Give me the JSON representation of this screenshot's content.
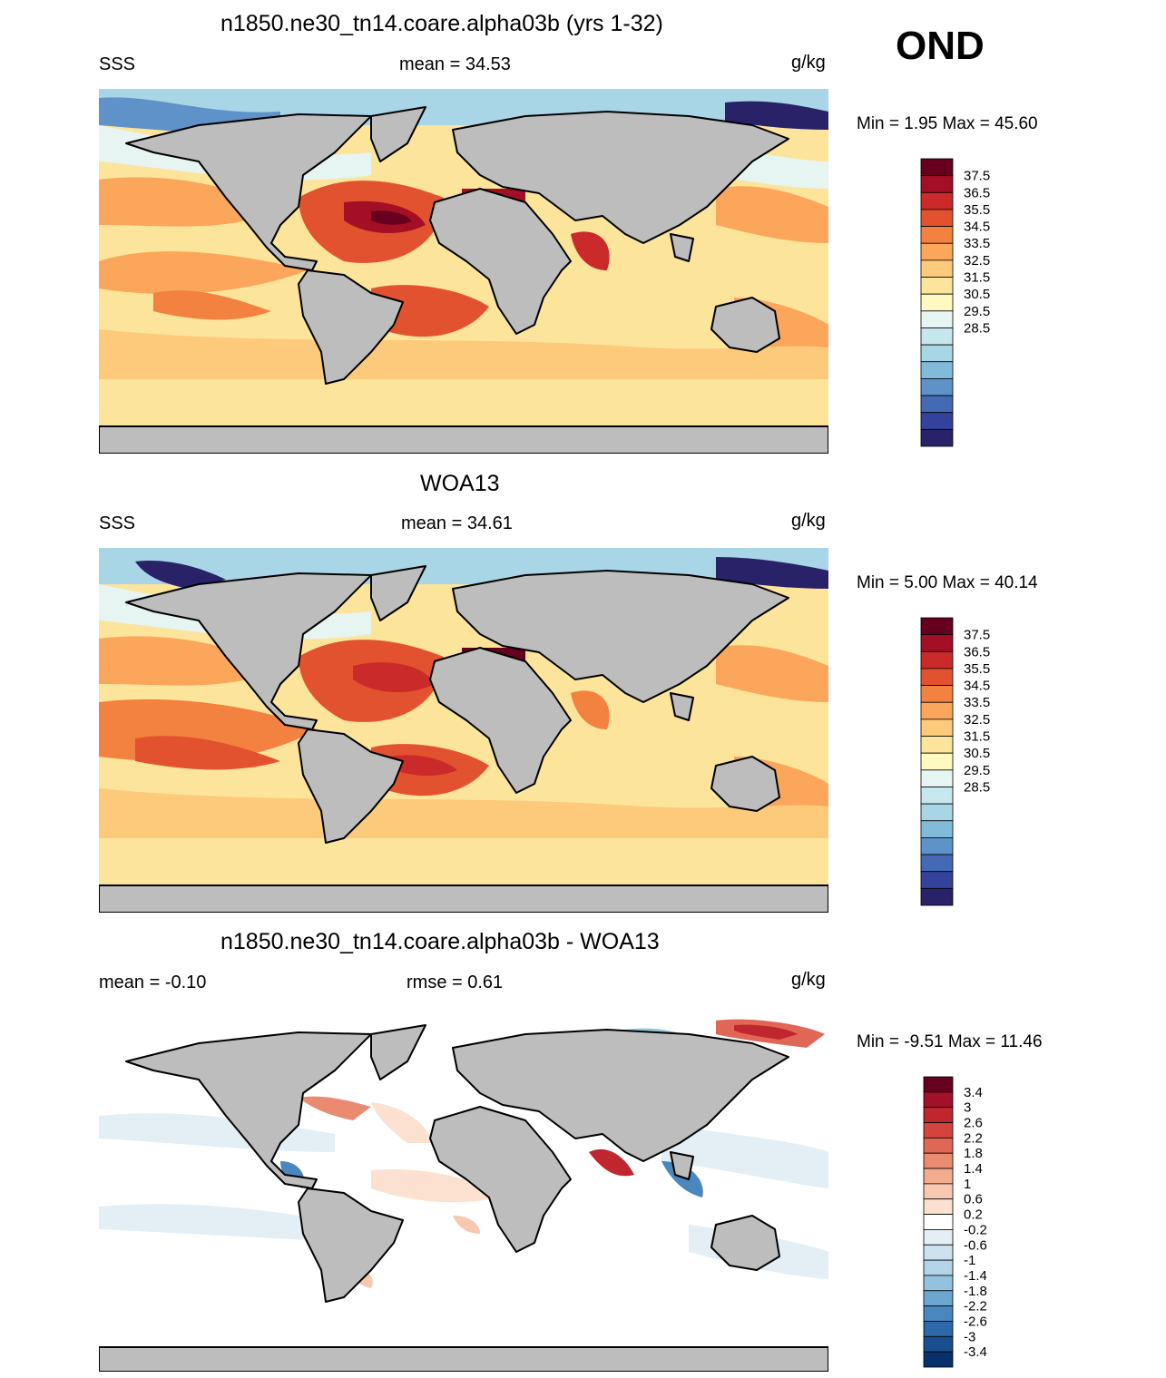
{
  "season": "OND",
  "colors": {
    "land": "#bdbdbd",
    "coast": "#000000"
  },
  "panels": [
    {
      "title": "n1850.ne30_tn14.coare.alpha03b (yrs 1-32)",
      "left_label": "SSS",
      "center_label": "mean =  34.53",
      "units": "g/kg",
      "minmax": "Min =   1.95 Max =  45.60",
      "colorbar": {
        "labels": [
          "37.5",
          "36.5",
          "35.5",
          "34.5",
          "33.5",
          "32.5",
          "31.5",
          "30.5",
          "29.5",
          "28.5"
        ],
        "colors": [
          "#67001f",
          "#a50f25",
          "#cb2a2a",
          "#e3522f",
          "#f3813f",
          "#fba65a",
          "#fdc97b",
          "#fde49b",
          "#fef9c0",
          "#e6f4f2",
          "#c7e7ee",
          "#a8d6e6",
          "#82bad9",
          "#5f92c8",
          "#456ab5",
          "#33429a",
          "#2a2269"
        ]
      }
    },
    {
      "title": "WOA13",
      "left_label": "SSS",
      "center_label": "mean =  34.61",
      "units": "g/kg",
      "minmax": "Min =   5.00 Max =  40.14",
      "colorbar": {
        "labels": [
          "37.5",
          "36.5",
          "35.5",
          "34.5",
          "33.5",
          "32.5",
          "31.5",
          "30.5",
          "29.5",
          "28.5"
        ],
        "colors": [
          "#67001f",
          "#a50f25",
          "#cb2a2a",
          "#e3522f",
          "#f3813f",
          "#fba65a",
          "#fdc97b",
          "#fde49b",
          "#fef9c0",
          "#e6f4f2",
          "#c7e7ee",
          "#a8d6e6",
          "#82bad9",
          "#5f92c8",
          "#456ab5",
          "#33429a",
          "#2a2269"
        ]
      }
    },
    {
      "title": "n1850.ne30_tn14.coare.alpha03b - WOA13",
      "left_label": "mean =  -0.10",
      "center_label": "rmse =   0.61",
      "units": "g/kg",
      "minmax": "Min =  -9.51 Max =  11.46",
      "colorbar": {
        "labels": [
          "3.4",
          "3",
          "2.6",
          "2.2",
          "1.8",
          "1.4",
          "1",
          "0.6",
          "0.2",
          "-0.2",
          "-0.6",
          "-1",
          "-1.4",
          "-1.8",
          "-2.2",
          "-2.6",
          "-3",
          "-3.4"
        ],
        "colors": [
          "#67001f",
          "#a11228",
          "#c0262e",
          "#d4433d",
          "#e06656",
          "#ea8a71",
          "#f3ab8f",
          "#f8c8b0",
          "#fce1d0",
          "#ffffff",
          "#e4eef5",
          "#cde2ee",
          "#b2d3e8",
          "#94c2de",
          "#6da7d0",
          "#4a87bf",
          "#2c68aa",
          "#1b4e90",
          "#08306b"
        ]
      }
    }
  ]
}
